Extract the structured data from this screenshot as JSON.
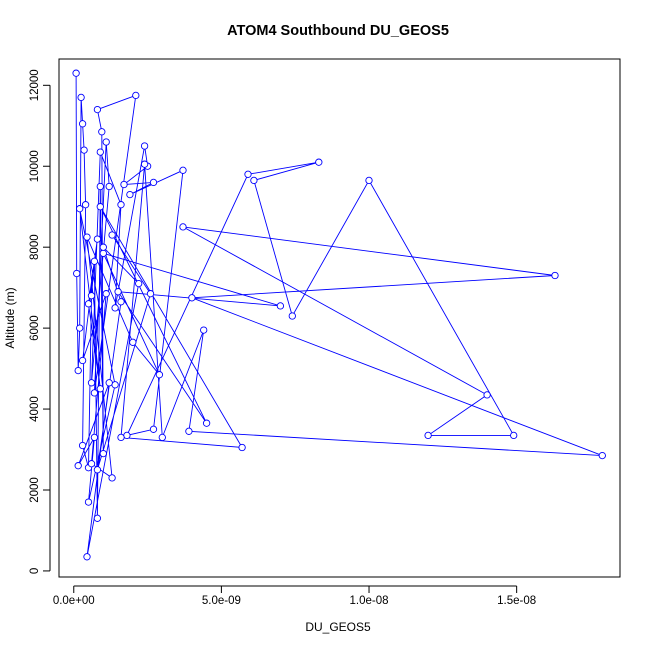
{
  "chart_data": {
    "type": "line",
    "title": "ATOM4 Southbound DU_GEOS5",
    "xlabel": "DU_GEOS5",
    "ylabel": "Altitude (m)",
    "xlim": [
      -5e-10,
      1.85e-08
    ],
    "ylim": [
      -150,
      12650
    ],
    "x_ticks": [
      0,
      5e-09,
      1e-08,
      1.5e-08
    ],
    "x_tick_labels": [
      "0.0e+00",
      "5.0e-09",
      "1.0e-08",
      "1.5e-08"
    ],
    "y_ticks": [
      0,
      2000,
      4000,
      6000,
      8000,
      10000,
      12000
    ],
    "y_tick_labels": [
      "0",
      "2000",
      "4000",
      "6000",
      "8000",
      "10000",
      "12000"
    ],
    "grid": false,
    "series": [
      {
        "line_color": "#0000ff",
        "marker": "open-circle",
        "x": [
          8e-11,
          1e-10,
          1.5e-10,
          2e-10,
          2.5e-10,
          3e-10,
          3.5e-10,
          4e-10,
          3e-10,
          5e-10,
          6e-10,
          7e-10,
          8e-10,
          9e-10,
          1e-09,
          9.5e-10,
          8e-10,
          2.1e-09,
          7e-10,
          1.1e-09,
          1.2e-09,
          6e-10,
          9e-10,
          1.6e-09,
          1.4e-09,
          2.4e-09,
          2.5e-09,
          1.7e-09,
          2.7e-09,
          1.9e-09,
          3.7e-09,
          2.7e-09,
          1.8e-09,
          5.9e-09,
          8.3e-09,
          6.1e-09,
          7.4e-09,
          1e-08,
          1.49e-08,
          1.2e-08,
          1.4e-08,
          3.7e-09,
          1.63e-08,
          4e-09,
          1.79e-08,
          3.9e-09,
          4.4e-09,
          3e-09,
          2.4e-09,
          1.6e-09,
          5.7e-09,
          9e-10,
          4.5e-09,
          1.5e-09,
          7e-09,
          1e-09,
          2.9e-09,
          2e-09,
          4.5e-10,
          1.3e-09,
          6e-10,
          1.1e-09,
          3e-10,
          8e-10,
          5e-10,
          9e-10,
          2e-10,
          1.4e-09,
          5e-10,
          7e-10,
          1.5e-10,
          1.2e-09,
          4.5e-10,
          2.2e-09,
          1e-09,
          1.6e-09,
          8e-10,
          2.6e-09,
          1.3e-09
        ],
        "y": [
          12300,
          7350,
          4950,
          6000,
          11700,
          11050,
          10400,
          9050,
          3100,
          2550,
          6800,
          7650,
          1300,
          9500,
          2900,
          10850,
          11400,
          11750,
          4400,
          10600,
          9500,
          4650,
          10350,
          9050,
          6500,
          10500,
          10000,
          9550,
          9600,
          9300,
          9900,
          3500,
          3350,
          9800,
          10100,
          9650,
          6300,
          9650,
          3350,
          3350,
          4350,
          8500,
          7300,
          6750,
          2850,
          3450,
          5950,
          3300,
          10050,
          3300,
          3050,
          9000,
          3650,
          6900,
          6550,
          7850,
          4850,
          5650,
          8250,
          2300,
          2650,
          6850,
          5200,
          8200,
          6600,
          4500,
          8950,
          4600,
          1700,
          3300,
          2600,
          4650,
          350,
          7100,
          8000,
          6650,
          2500,
          6850,
          8300
        ]
      }
    ]
  }
}
